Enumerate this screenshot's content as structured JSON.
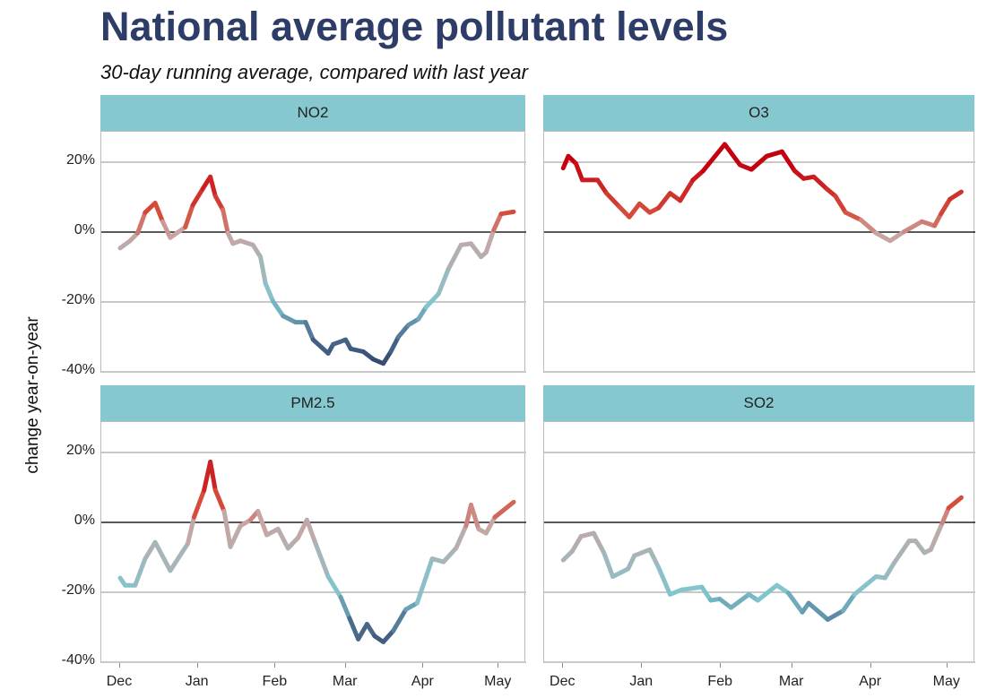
{
  "chart_data": {
    "type": "line",
    "title": "National average pollutant levels",
    "subtitle": "30-day running average, compared with last year",
    "ylabel": "change year-on-year",
    "xlabel": "",
    "x_unit": "days since Dec 1",
    "xlim": [
      -7.5,
      162
    ],
    "ylim": [
      -40.5,
      28.7
    ],
    "yticks": [
      {
        "v": 20,
        "label": "20%"
      },
      {
        "v": 0,
        "label": "0%"
      },
      {
        "v": -20,
        "label": "-20%"
      },
      {
        "v": -40,
        "label": "-40%"
      }
    ],
    "xticks": [
      {
        "v": 0,
        "label": "Dec"
      },
      {
        "v": 31,
        "label": "Jan"
      },
      {
        "v": 62,
        "label": "Feb"
      },
      {
        "v": 90,
        "label": "Mar"
      },
      {
        "v": 121,
        "label": "Apr"
      },
      {
        "v": 151,
        "label": "May"
      }
    ],
    "grid": true,
    "color_scale": [
      {
        "v": 20,
        "c": "#c4000e"
      },
      {
        "v": 5,
        "c": "#d5503e"
      },
      {
        "v": 0,
        "c": "#c9a4a2"
      },
      {
        "v": -10,
        "c": "#a6b5b9"
      },
      {
        "v": -20,
        "c": "#7fc6cf"
      },
      {
        "v": -30,
        "c": "#4c6c8e"
      },
      {
        "v": -40,
        "c": "#2a3d66"
      }
    ],
    "panels": [
      {
        "name": "NO2",
        "points": [
          [
            0,
            -4.6
          ],
          [
            4,
            -2.5
          ],
          [
            7,
            -0.3
          ],
          [
            10,
            5.6
          ],
          [
            14,
            8.3
          ],
          [
            17,
            3
          ],
          [
            20,
            -1.6
          ],
          [
            26,
            1.4
          ],
          [
            29,
            7.7
          ],
          [
            33,
            12.4
          ],
          [
            36,
            15.8
          ],
          [
            38,
            10.3
          ],
          [
            41,
            6.4
          ],
          [
            43,
            -0.3
          ],
          [
            45,
            -3.3
          ],
          [
            48,
            -2.5
          ],
          [
            53,
            -3.7
          ],
          [
            56,
            -7.1
          ],
          [
            58,
            -14.7
          ],
          [
            61,
            -19.8
          ],
          [
            65,
            -24
          ],
          [
            70,
            -25.8
          ],
          [
            74,
            -25.8
          ],
          [
            77,
            -30.8
          ],
          [
            83,
            -34.7
          ],
          [
            85,
            -32.1
          ],
          [
            90,
            -30.8
          ],
          [
            92,
            -33.4
          ],
          [
            97,
            -34.2
          ],
          [
            101,
            -36.4
          ],
          [
            105,
            -37.6
          ],
          [
            108,
            -34.2
          ],
          [
            111,
            -30
          ],
          [
            115,
            -26.6
          ],
          [
            119,
            -24.9
          ],
          [
            122,
            -21.5
          ],
          [
            127,
            -17.7
          ],
          [
            131,
            -10.5
          ],
          [
            136,
            -3.7
          ],
          [
            140,
            -3.3
          ],
          [
            144,
            -7.1
          ],
          [
            146,
            -5.8
          ],
          [
            149,
            0.5
          ],
          [
            152,
            5.2
          ],
          [
            157,
            5.8
          ]
        ]
      },
      {
        "name": "O3",
        "points": [
          [
            0,
            18.3
          ],
          [
            2,
            21.7
          ],
          [
            5,
            19.6
          ],
          [
            7.5,
            14.9
          ],
          [
            13.5,
            14.9
          ],
          [
            17,
            11.1
          ],
          [
            22,
            7.3
          ],
          [
            26,
            4.3
          ],
          [
            30,
            8.1
          ],
          [
            34,
            5.6
          ],
          [
            37.5,
            6.9
          ],
          [
            42,
            11.1
          ],
          [
            46,
            9
          ],
          [
            51,
            14.9
          ],
          [
            55,
            17.5
          ],
          [
            63.5,
            25.1
          ],
          [
            69.5,
            19.2
          ],
          [
            74,
            17.9
          ],
          [
            80,
            21.7
          ],
          [
            86,
            23
          ],
          [
            91,
            17.5
          ],
          [
            94.5,
            15.3
          ],
          [
            98.5,
            15.8
          ],
          [
            103.5,
            12.4
          ],
          [
            107,
            10.3
          ],
          [
            111,
            5.6
          ],
          [
            117,
            3.5
          ],
          [
            123,
            -0.3
          ],
          [
            128.5,
            -2.5
          ],
          [
            134,
            0.1
          ],
          [
            141,
            3
          ],
          [
            146,
            1.8
          ],
          [
            148.5,
            5.2
          ],
          [
            152,
            9.4
          ],
          [
            156.5,
            11.5
          ]
        ]
      },
      {
        "name": "PM2.5",
        "points": [
          [
            0,
            -15.9
          ],
          [
            2,
            -18
          ],
          [
            6,
            -18
          ],
          [
            10,
            -10.4
          ],
          [
            14,
            -5.7
          ],
          [
            20,
            -13.8
          ],
          [
            27,
            -6.1
          ],
          [
            29.5,
            1.5
          ],
          [
            33.5,
            9.2
          ],
          [
            36,
            17.3
          ],
          [
            38,
            9.2
          ],
          [
            41.5,
            3.2
          ],
          [
            44,
            -7
          ],
          [
            48,
            -1
          ],
          [
            52,
            0.7
          ],
          [
            55,
            3.2
          ],
          [
            58.5,
            -3.6
          ],
          [
            63,
            -1.9
          ],
          [
            67,
            -7.4
          ],
          [
            71,
            -4.4
          ],
          [
            74.5,
            0.7
          ],
          [
            78,
            -6.1
          ],
          [
            83,
            -15.5
          ],
          [
            88,
            -21.4
          ],
          [
            91.5,
            -27.4
          ],
          [
            95,
            -33.4
          ],
          [
            98.5,
            -29.1
          ],
          [
            101.5,
            -32.5
          ],
          [
            105,
            -34.2
          ],
          [
            109,
            -31
          ],
          [
            114,
            -24.9
          ],
          [
            118.5,
            -23.1
          ],
          [
            124.5,
            -10.4
          ],
          [
            129,
            -11.3
          ],
          [
            134,
            -7.4
          ],
          [
            138,
            -1
          ],
          [
            140,
            5
          ],
          [
            143,
            -1.9
          ],
          [
            146,
            -3.1
          ],
          [
            149.5,
            1.5
          ],
          [
            157,
            5.8
          ]
        ]
      },
      {
        "name": "SO2",
        "points": [
          [
            0,
            -10.8
          ],
          [
            3.5,
            -8.3
          ],
          [
            7,
            -4
          ],
          [
            12,
            -3.1
          ],
          [
            16,
            -8.7
          ],
          [
            19.5,
            -15.5
          ],
          [
            25.5,
            -13.3
          ],
          [
            28,
            -9.5
          ],
          [
            34,
            -7.8
          ],
          [
            37.5,
            -12.9
          ],
          [
            42,
            -20.6
          ],
          [
            46.5,
            -19.3
          ],
          [
            54.5,
            -18.5
          ],
          [
            58,
            -22.3
          ],
          [
            61.5,
            -21.9
          ],
          [
            66,
            -24.4
          ],
          [
            73,
            -20.6
          ],
          [
            76.5,
            -22.3
          ],
          [
            84,
            -18
          ],
          [
            88.5,
            -20.2
          ],
          [
            94,
            -25.7
          ],
          [
            96.5,
            -23.1
          ],
          [
            104,
            -27.8
          ],
          [
            110,
            -25.3
          ],
          [
            114.5,
            -20.6
          ],
          [
            123,
            -15.5
          ],
          [
            126.5,
            -15.9
          ],
          [
            130,
            -11.7
          ],
          [
            136,
            -5.3
          ],
          [
            138.5,
            -5.3
          ],
          [
            142,
            -8.7
          ],
          [
            144.5,
            -7.8
          ],
          [
            149,
            -0.2
          ],
          [
            151.5,
            4.1
          ],
          [
            156.5,
            7.1
          ]
        ]
      }
    ]
  }
}
